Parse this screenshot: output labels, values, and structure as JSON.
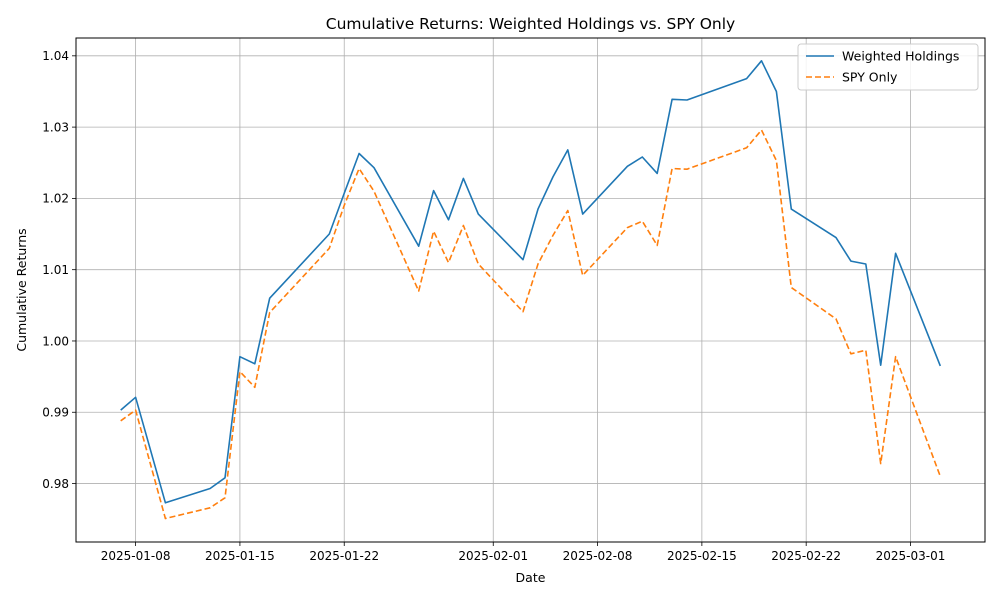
{
  "chart_data": {
    "type": "line",
    "title": "Cumulative Returns: Weighted Holdings vs. SPY Only",
    "xlabel": "Date",
    "ylabel": "Cumulative Returns",
    "x_ticks": [
      "2025-01-08",
      "2025-01-15",
      "2025-01-22",
      "2025-02-01",
      "2025-02-08",
      "2025-02-15",
      "2025-02-22",
      "2025-03-01"
    ],
    "y_ticks": [
      "0.98",
      "0.99",
      "1.00",
      "1.01",
      "1.02",
      "1.03",
      "1.04"
    ],
    "ylim": [
      0.9718,
      1.0425
    ],
    "xlim": [
      "2025-01-04",
      "2025-03-06"
    ],
    "grid": true,
    "legend_position": "top-right",
    "dates": [
      "2025-01-07",
      "2025-01-08",
      "2025-01-10",
      "2025-01-13",
      "2025-01-14",
      "2025-01-15",
      "2025-01-16",
      "2025-01-17",
      "2025-01-21",
      "2025-01-22",
      "2025-01-23",
      "2025-01-24",
      "2025-01-27",
      "2025-01-28",
      "2025-01-29",
      "2025-01-30",
      "2025-01-31",
      "2025-02-03",
      "2025-02-04",
      "2025-02-05",
      "2025-02-06",
      "2025-02-07",
      "2025-02-10",
      "2025-02-11",
      "2025-02-12",
      "2025-02-13",
      "2025-02-14",
      "2025-02-18",
      "2025-02-19",
      "2025-02-20",
      "2025-02-21",
      "2025-02-24",
      "2025-02-25",
      "2025-02-26",
      "2025-02-27",
      "2025-02-28",
      "2025-03-03"
    ],
    "series": [
      {
        "name": "Weighted Holdings",
        "color": "#1f77b4",
        "style": "solid",
        "values": [
          0.9903,
          0.9921,
          0.9773,
          0.9793,
          0.9808,
          0.9978,
          0.9968,
          1.006,
          1.015,
          1.0207,
          1.0263,
          1.0243,
          1.0133,
          1.0211,
          1.017,
          1.0228,
          1.0178,
          1.0114,
          1.0185,
          1.023,
          1.0268,
          1.0178,
          1.0245,
          1.0258,
          1.0235,
          1.0339,
          1.0338,
          1.0368,
          1.0393,
          1.035,
          1.0185,
          1.0145,
          1.0112,
          1.0108,
          0.9966,
          1.0123,
          0.9965
        ]
      },
      {
        "name": "SPY Only",
        "color": "#ff7f0e",
        "style": "dashed",
        "values": [
          0.9888,
          0.9903,
          0.9751,
          0.9766,
          0.978,
          0.9957,
          0.9935,
          1.004,
          1.013,
          1.019,
          1.0242,
          1.021,
          1.007,
          1.0154,
          1.011,
          1.0162,
          1.0108,
          1.0041,
          1.0108,
          1.0148,
          1.0183,
          1.0092,
          1.0159,
          1.0168,
          1.0134,
          1.0242,
          1.0241,
          1.0271,
          1.0296,
          1.0253,
          1.0075,
          1.0031,
          0.9982,
          0.9987,
          0.9828,
          0.9978,
          0.981
        ]
      }
    ]
  }
}
